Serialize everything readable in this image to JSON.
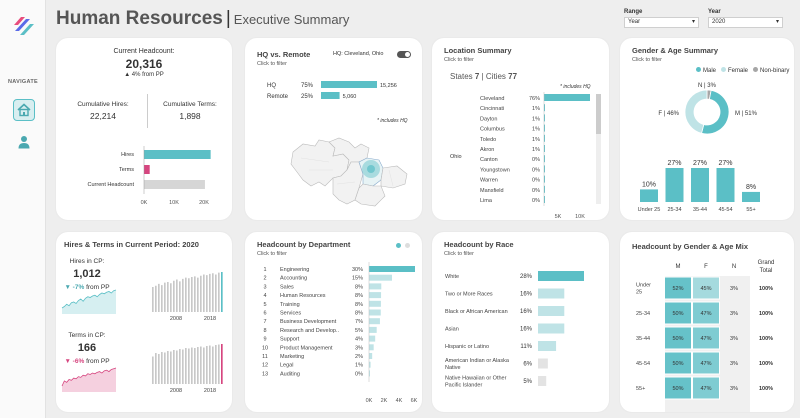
{
  "header": {
    "title": "Human Resources",
    "separator": "|",
    "subtitle": "Executive Summary"
  },
  "filters": {
    "range": {
      "label": "Range",
      "value": "Year"
    },
    "year": {
      "label": "Year",
      "value": "2020"
    }
  },
  "sidebar": {
    "nav_label": "NAVIGATE",
    "items": [
      {
        "icon": "home-icon"
      },
      {
        "icon": "user-icon"
      }
    ]
  },
  "colors": {
    "teal": "#5bbfc6",
    "pink": "#d6457f",
    "gray": "#d6d6d6",
    "teal_light": "#bfe3e6"
  },
  "headcount": {
    "title": "Current Headcount:",
    "value": "20,316",
    "change": "▲ 4% from PP",
    "hires_label": "Cumulative Hires:",
    "hires_value": "22,214",
    "terms_label": "Cumulative Terms:",
    "terms_value": "1,898",
    "bars": [
      {
        "label": "Hires",
        "value": 22214
      },
      {
        "label": "Terms",
        "value": 1898
      },
      {
        "label": "Current Headcount",
        "value": 20316
      }
    ],
    "axis": [
      "0K",
      "10K",
      "20K"
    ]
  },
  "hq": {
    "title": "HQ vs. Remote",
    "subtitle": "Click to filter",
    "toggle_label": "HQ: Cleveland, Ohio",
    "rows": [
      {
        "label": "HQ",
        "pct": "75%",
        "value": "15,256",
        "amount": 15256
      },
      {
        "label": "Remote",
        "pct": "25%",
        "value": "5,060",
        "amount": 5060
      }
    ],
    "note": "* includes HQ"
  },
  "location": {
    "title": "Location Summary",
    "subtitle": "Click to filter",
    "states_label": "States",
    "states": "7",
    "cities_label": "Cities",
    "cities": "77",
    "divider": "|",
    "note": "* includes HQ",
    "state": "Ohio",
    "cities_list": [
      {
        "name": "Cleveland",
        "pct": "76%",
        "value": 76
      },
      {
        "name": "Cincinnati",
        "pct": "1%",
        "value": 1
      },
      {
        "name": "Dayton",
        "pct": "1%",
        "value": 1
      },
      {
        "name": "Columbus",
        "pct": "1%",
        "value": 1
      },
      {
        "name": "Toledo",
        "pct": "1%",
        "value": 1
      },
      {
        "name": "Akron",
        "pct": "1%",
        "value": 1
      },
      {
        "name": "Canton",
        "pct": "0%",
        "value": 0.5
      },
      {
        "name": "Youngstown",
        "pct": "0%",
        "value": 0.5
      },
      {
        "name": "Warren",
        "pct": "0%",
        "value": 0.5
      },
      {
        "name": "Mansfield",
        "pct": "0%",
        "value": 0.5
      },
      {
        "name": "Lima",
        "pct": "0%",
        "value": 0.5
      }
    ],
    "axis": [
      "5K",
      "10K"
    ]
  },
  "gender_age": {
    "title": "Gender & Age Summary",
    "subtitle": "Click to filter",
    "legend": [
      {
        "label": "Male",
        "color": "#5bbfc6"
      },
      {
        "label": "Female",
        "color": "#bfe3e6"
      },
      {
        "label": "Non-binary",
        "color": "#a6a6a6"
      }
    ],
    "donut": [
      {
        "label": "M | 51%",
        "value": 51
      },
      {
        "label": "F | 46%",
        "value": 46
      },
      {
        "label": "N | 3%",
        "value": 3
      }
    ],
    "age_bars": [
      {
        "label": "Under 25",
        "pct": "10%",
        "value": 10
      },
      {
        "label": "25-34",
        "pct": "27%",
        "value": 27
      },
      {
        "label": "35-44",
        "pct": "27%",
        "value": 27
      },
      {
        "label": "45-54",
        "pct": "27%",
        "value": 27
      },
      {
        "label": "55+",
        "pct": "8%",
        "value": 8
      }
    ]
  },
  "hires_terms": {
    "title": "Hires & Terms in Current Period:",
    "year": "2020",
    "hires_label": "Hires in CP:",
    "hires_value": "1,012",
    "hires_change": "▼ -7%",
    "hires_change_suffix": "from PP",
    "terms_label": "Terms in CP:",
    "terms_value": "166",
    "terms_change": "▼ -6%",
    "terms_change_suffix": "from PP",
    "axis_years": [
      "2008",
      "2018"
    ],
    "hires_series": [
      40,
      42,
      45,
      43,
      47,
      48,
      46,
      50,
      52,
      49,
      53,
      55,
      54,
      56,
      57,
      55,
      58,
      60,
      59,
      61,
      62,
      60,
      63,
      64
    ],
    "terms_series": [
      55,
      62,
      60,
      64,
      63,
      66,
      65,
      68,
      67,
      70,
      69,
      72,
      71,
      73,
      72,
      74,
      75,
      73,
      76,
      77,
      75,
      78,
      79,
      80
    ]
  },
  "department": {
    "title": "Headcount by Department",
    "subtitle": "Click to filter",
    "rows": [
      {
        "rank": "1",
        "name": "Engineering",
        "pct": "30%",
        "value": 6100
      },
      {
        "rank": "2",
        "name": "Accounting",
        "pct": "15%",
        "value": 3050
      },
      {
        "rank": "3",
        "name": "Sales",
        "pct": "8%",
        "value": 1630
      },
      {
        "rank": "4",
        "name": "Human Resources",
        "pct": "8%",
        "value": 1600
      },
      {
        "rank": "5",
        "name": "Training",
        "pct": "8%",
        "value": 1580
      },
      {
        "rank": "6",
        "name": "Services",
        "pct": "8%",
        "value": 1560
      },
      {
        "rank": "7",
        "name": "Business Development",
        "pct": "7%",
        "value": 1450
      },
      {
        "rank": "8",
        "name": "Research and Develop..",
        "pct": "5%",
        "value": 1020
      },
      {
        "rank": "9",
        "name": "Support",
        "pct": "4%",
        "value": 820
      },
      {
        "rank": "10",
        "name": "Product Management",
        "pct": "3%",
        "value": 620
      },
      {
        "rank": "11",
        "name": "Marketing",
        "pct": "2%",
        "value": 420
      },
      {
        "rank": "12",
        "name": "Legal",
        "pct": "1%",
        "value": 210
      },
      {
        "rank": "13",
        "name": "Auditing",
        "pct": "0%",
        "value": 80
      }
    ],
    "axis": [
      "0K",
      "2K",
      "4K",
      "6K"
    ]
  },
  "race": {
    "title": "Headcount by Race",
    "subtitle": "Click to filter",
    "rows": [
      {
        "name": [
          "White"
        ],
        "pct": "28%",
        "value": 28
      },
      {
        "name": [
          "Two or More Races"
        ],
        "pct": "16%",
        "value": 16
      },
      {
        "name": [
          "Black or African American"
        ],
        "pct": "16%",
        "value": 16
      },
      {
        "name": [
          "Asian"
        ],
        "pct": "16%",
        "value": 16
      },
      {
        "name": [
          "Hispanic or Latino"
        ],
        "pct": "11%",
        "value": 11
      },
      {
        "name": [
          "American Indian or Alaska",
          "Native"
        ],
        "pct": "6%",
        "value": 6
      },
      {
        "name": [
          "Native Hawaiian or Other",
          "Pacific Islander"
        ],
        "pct": "5%",
        "value": 5
      }
    ]
  },
  "gender_age_mix": {
    "title": "Headcount by Gender & Age Mix",
    "columns": [
      "M",
      "F",
      "N",
      "Grand Total"
    ],
    "rows": [
      {
        "label": [
          "Under",
          "25"
        ],
        "cells": [
          "52%",
          "45%",
          "3%",
          "100%"
        ]
      },
      {
        "label": [
          "25-34"
        ],
        "cells": [
          "50%",
          "47%",
          "3%",
          "100%"
        ]
      },
      {
        "label": [
          "35-44"
        ],
        "cells": [
          "50%",
          "47%",
          "3%",
          "100%"
        ]
      },
      {
        "label": [
          "45-54"
        ],
        "cells": [
          "50%",
          "47%",
          "3%",
          "100%"
        ]
      },
      {
        "label": [
          "55+"
        ],
        "cells": [
          "50%",
          "47%",
          "3%",
          "100%"
        ]
      }
    ]
  }
}
